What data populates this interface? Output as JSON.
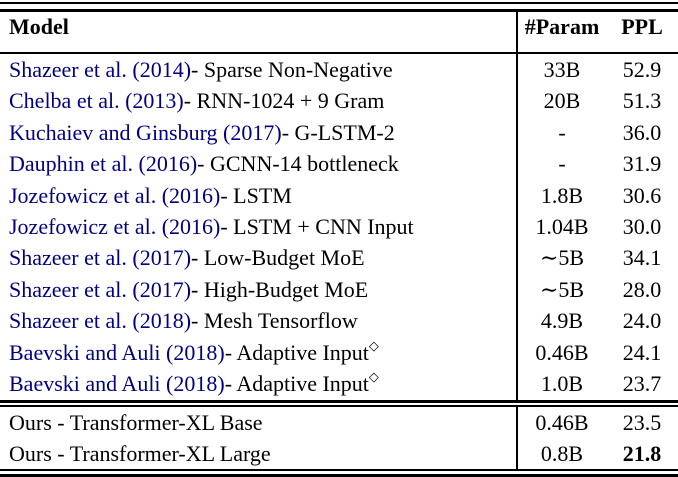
{
  "colors": {
    "citation_link": "#000080",
    "text": "#000000",
    "rule": "#000000"
  },
  "header": {
    "model": "Model",
    "param": "#Param",
    "ppl": "PPL"
  },
  "rows": [
    {
      "cite": "Shazeer et al. (2014)",
      "rest": " - Sparse Non-Negative",
      "param": "33B",
      "ppl": "52.9"
    },
    {
      "cite": "Chelba et al. (2013)",
      "rest": " - RNN-1024 + 9 Gram",
      "param": "20B",
      "ppl": "51.3"
    },
    {
      "cite": "Kuchaiev and Ginsburg (2017)",
      "rest": " - G-LSTM-2",
      "param": "-",
      "ppl": "36.0"
    },
    {
      "cite": "Dauphin et al. (2016)",
      "rest": " - GCNN-14 bottleneck",
      "param": "-",
      "ppl": "31.9"
    },
    {
      "cite": "Jozefowicz et al. (2016)",
      "rest": " - LSTM",
      "param": "1.8B",
      "ppl": "30.6"
    },
    {
      "cite": "Jozefowicz et al. (2016)",
      "rest": " - LSTM + CNN Input",
      "param": "1.04B",
      "ppl": "30.0"
    },
    {
      "cite": "Shazeer et al. (2017)",
      "rest": " - Low-Budget MoE",
      "param": "∼5B",
      "ppl": "34.1"
    },
    {
      "cite": "Shazeer et al. (2017)",
      "rest": " - High-Budget MoE",
      "param": "∼5B",
      "ppl": "28.0"
    },
    {
      "cite": "Shazeer et al. (2018)",
      "rest": " - Mesh Tensorflow",
      "param": "4.9B",
      "ppl": "24.0"
    },
    {
      "cite": "Baevski and Auli (2018)",
      "rest": " - Adaptive Input",
      "sup": "◇",
      "param": "0.46B",
      "ppl": "24.1"
    },
    {
      "cite": "Baevski and Auli (2018)",
      "rest": " - Adaptive Input",
      "sup": "◇",
      "param": "1.0B",
      "ppl": "23.7"
    }
  ],
  "ours_rows": [
    {
      "model": "Ours - Transformer-XL Base",
      "param": "0.46B",
      "ppl": "23.5"
    },
    {
      "model": "Ours - Transformer-XL Large",
      "param": "0.8B",
      "ppl": "21.8"
    }
  ]
}
